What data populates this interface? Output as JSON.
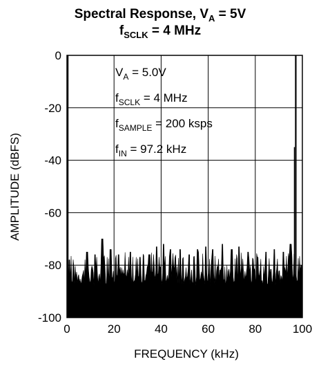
{
  "chart_data": {
    "type": "line",
    "title": {
      "line1": {
        "main": "Spectral Response, V",
        "sub": "A",
        "tail": " = 5V"
      },
      "line2": {
        "main": "f",
        "sub": "SCLK",
        "tail": " = 4 MHz"
      }
    },
    "xlabel": "FREQUENCY (kHz)",
    "ylabel": "AMPLITUDE (dBFS)",
    "xlim": [
      0,
      100
    ],
    "ylim": [
      -100,
      0
    ],
    "x_ticks": [
      "0",
      "20",
      "40",
      "60",
      "80",
      "100"
    ],
    "y_ticks": [
      "0",
      "-20",
      "-40",
      "-60",
      "-80",
      "-100"
    ],
    "grid": true,
    "annotations": [
      {
        "main": "V",
        "sub": "A",
        "tail": " = 5.0V"
      },
      {
        "main": "f",
        "sub": "SCLK",
        "tail": " = 4 MHz"
      },
      {
        "main": "f",
        "sub": "SAMPLE",
        "tail": " = 200 ksps"
      },
      {
        "main": "f",
        "sub": "IN",
        "tail": " = 97.2 kHz"
      }
    ],
    "series": [
      {
        "noise_floor_dbfs": [
          -80,
          -88
        ],
        "noise_peaks": [
          {
            "x": 1.0,
            "y": -78
          },
          {
            "x": 8.5,
            "y": -75
          },
          {
            "x": 12.0,
            "y": -76
          },
          {
            "x": 15.0,
            "y": -70
          },
          {
            "x": 18.5,
            "y": -74
          },
          {
            "x": 22.0,
            "y": -76
          },
          {
            "x": 27.0,
            "y": -75
          },
          {
            "x": 31.0,
            "y": -77
          },
          {
            "x": 35.0,
            "y": -76
          },
          {
            "x": 38.0,
            "y": -73
          },
          {
            "x": 41.0,
            "y": -72
          },
          {
            "x": 44.0,
            "y": -74
          },
          {
            "x": 48.0,
            "y": -74
          },
          {
            "x": 52.0,
            "y": -76
          },
          {
            "x": 55.5,
            "y": -74
          },
          {
            "x": 59.0,
            "y": -73
          },
          {
            "x": 62.0,
            "y": -74
          },
          {
            "x": 66.0,
            "y": -72
          },
          {
            "x": 70.0,
            "y": -74
          },
          {
            "x": 73.0,
            "y": -73
          },
          {
            "x": 77.0,
            "y": -75
          },
          {
            "x": 81.0,
            "y": -77
          },
          {
            "x": 84.5,
            "y": -75
          },
          {
            "x": 88.0,
            "y": -74
          },
          {
            "x": 92.0,
            "y": -75
          },
          {
            "x": 95.0,
            "y": -72
          }
        ],
        "dc_component": {
          "x": 0.3,
          "y": 0
        },
        "fundamental": {
          "x": 97.2,
          "y": 0
        }
      }
    ]
  }
}
